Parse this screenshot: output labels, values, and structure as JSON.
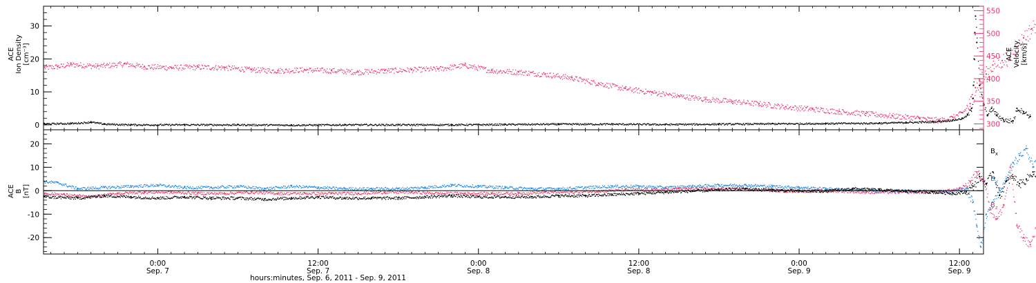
{
  "colors": {
    "black": "#000000",
    "pink": "#e8386a",
    "blue": "#1e88e5",
    "frame": "#000000"
  },
  "xaxis": {
    "ticks": [
      {
        "time": "0:00",
        "date": "Sep. 7"
      },
      {
        "time": "12:00",
        "date": "Sep. 7"
      },
      {
        "time": "0:00",
        "date": "Sep. 8"
      },
      {
        "time": "12:00",
        "date": "Sep. 8"
      },
      {
        "time": "0:00",
        "date": "Sep. 9"
      },
      {
        "time": "12:00",
        "date": "Sep. 9"
      }
    ],
    "title": "hours:minutes, Sep.  6, 2011 - Sep.  9, 2011"
  },
  "chart_data": [
    {
      "type": "scatter",
      "title": "",
      "xlabel": "hours:minutes, Sep.  6, 2011 - Sep.  9, 2011",
      "x_range_hours_since_sep6": [
        15.45,
        85.8
      ],
      "left_axis": {
        "label_lines": [
          "ACE",
          "Ion Density",
          "[cm⁻³]"
        ],
        "ylim": [
          -1.5,
          36
        ],
        "ticks": [
          0,
          10,
          20,
          30
        ]
      },
      "right_axis": {
        "label_lines": [
          "ACE",
          "Velocity",
          "[km/s]"
        ],
        "ylim": [
          287,
          560
        ],
        "ticks": [
          300,
          350,
          400,
          450,
          500,
          550
        ]
      },
      "series": [
        {
          "axis": "left",
          "color": "black",
          "points": [
            [
              15.5,
              0.4
            ],
            [
              17.5,
              0.5
            ],
            [
              19.0,
              0.9
            ],
            [
              20.0,
              0.3
            ],
            [
              22,
              0.1
            ],
            [
              26,
              0.1
            ],
            [
              30,
              0.1
            ],
            [
              34,
              0.0
            ],
            [
              38,
              0.1
            ],
            [
              42,
              0.1
            ],
            [
              46,
              0.1
            ],
            [
              50,
              0.2
            ],
            [
              54,
              0.3
            ],
            [
              58,
              0.3
            ],
            [
              62,
              0.2
            ],
            [
              66,
              0.3
            ],
            [
              70,
              0.4
            ],
            [
              74,
              0.5
            ],
            [
              78,
              0.6
            ],
            [
              80,
              0.8
            ],
            [
              82,
              1.0
            ],
            [
              83.5,
              1.5
            ],
            [
              84.2,
              2.0
            ],
            [
              84.6,
              3.0
            ],
            [
              84.9,
              5.0
            ],
            [
              85.0,
              8.0
            ],
            [
              85.05,
              12.0
            ],
            [
              85.1,
              20.0
            ],
            [
              85.15,
              28.0
            ],
            [
              85.2,
              33.0
            ],
            [
              85.3,
              25.0
            ],
            [
              85.5,
              12.0
            ],
            [
              85.8,
              6.0
            ],
            [
              86.1,
              3.0
            ],
            [
              86.4,
              5.0
            ],
            [
              86.8,
              3.0
            ],
            [
              87.3,
              1.5
            ],
            [
              88.0,
              1.2
            ],
            [
              88.3,
              5.0
            ],
            [
              88.8,
              4.0
            ],
            [
              89.3,
              2.5
            ]
          ]
        },
        {
          "axis": "right",
          "color": "pink",
          "points": [
            [
              15.5,
              425
            ],
            [
              16.5,
              427
            ],
            [
              17.5,
              432
            ],
            [
              19.5,
              428
            ],
            [
              21.5,
              433
            ],
            [
              23.0,
              427
            ],
            [
              25.0,
              425
            ],
            [
              27.0,
              426
            ],
            [
              29.0,
              425
            ],
            [
              31.0,
              420
            ],
            [
              33.0,
              418
            ],
            [
              35.0,
              420
            ],
            [
              37.0,
              418
            ],
            [
              39.0,
              415
            ],
            [
              41.0,
              418
            ],
            [
              43.0,
              420
            ],
            [
              45.0,
              422
            ],
            [
              47.0,
              430
            ],
            [
              49.0,
              418
            ],
            [
              51.0,
              415
            ],
            [
              53.0,
              410
            ],
            [
              55.0,
              402
            ],
            [
              57.0,
              390
            ],
            [
              59.0,
              378
            ],
            [
              61.0,
              370
            ],
            [
              63.0,
              362
            ],
            [
              65.0,
              355
            ],
            [
              67.0,
              350
            ],
            [
              69.0,
              345
            ],
            [
              71.0,
              338
            ],
            [
              73.0,
              333
            ],
            [
              75.0,
              328
            ],
            [
              77.0,
              323
            ],
            [
              79.0,
              318
            ],
            [
              81.0,
              313
            ],
            [
              82.5,
              308
            ],
            [
              83.5,
              315
            ],
            [
              84.2,
              325
            ],
            [
              84.8,
              345
            ],
            [
              85.2,
              380
            ],
            [
              85.5,
              395
            ],
            [
              86.0,
              410
            ],
            [
              86.5,
              430
            ],
            [
              87.2,
              440
            ],
            [
              87.8,
              450
            ],
            [
              88.3,
              470
            ],
            [
              88.8,
              490
            ],
            [
              89.4,
              510
            ],
            [
              89.9,
              530
            ],
            [
              90.4,
              520
            ],
            [
              90.9,
              480
            ],
            [
              91.2,
              460
            ]
          ]
        }
      ]
    },
    {
      "type": "scatter",
      "title": "",
      "xlabel": "hours:minutes, Sep.  6, 2011 - Sep.  9, 2011",
      "left_axis": {
        "label_lines": [
          "ACE",
          "B",
          "[nT]"
        ],
        "ylim": [
          -27,
          26
        ],
        "ticks": [
          -20,
          -10,
          0,
          10,
          20
        ]
      },
      "zero_line": true,
      "series": [
        {
          "name": "Bx",
          "name_main": "B",
          "name_sub": "x",
          "color": "black",
          "points": [
            [
              15.5,
              -2.5
            ],
            [
              18.0,
              -3.0
            ],
            [
              20.0,
              -2.0
            ],
            [
              22.0,
              -2.5
            ],
            [
              24.0,
              -3.0
            ],
            [
              26.0,
              -2.5
            ],
            [
              28.0,
              -3.0
            ],
            [
              30.0,
              -3.0
            ],
            [
              32.0,
              -3.5
            ],
            [
              34.0,
              -3.0
            ],
            [
              36.0,
              -2.5
            ],
            [
              38.0,
              -3.0
            ],
            [
              40.0,
              -3.0
            ],
            [
              42.0,
              -3.0
            ],
            [
              44.0,
              -2.5
            ],
            [
              46.0,
              -2.0
            ],
            [
              48.0,
              -2.5
            ],
            [
              50.0,
              -2.5
            ],
            [
              52.0,
              -2.5
            ],
            [
              54.0,
              -2.0
            ],
            [
              56.0,
              -2.0
            ],
            [
              58.0,
              -1.5
            ],
            [
              60.0,
              -1.0
            ],
            [
              62.0,
              -0.5
            ],
            [
              64.0,
              0.0
            ],
            [
              66.0,
              0.5
            ],
            [
              68.0,
              1.0
            ],
            [
              70.0,
              0.5
            ],
            [
              72.0,
              0.0
            ],
            [
              74.0,
              0.0
            ],
            [
              76.0,
              1.0
            ],
            [
              78.0,
              0.5
            ],
            [
              80.0,
              0.0
            ],
            [
              82.0,
              -0.5
            ],
            [
              83.5,
              -1.0
            ],
            [
              84.5,
              -0.5
            ],
            [
              85.0,
              2.0
            ],
            [
              85.5,
              6.0
            ],
            [
              86.0,
              3.0
            ],
            [
              86.5,
              8.0
            ],
            [
              87.0,
              -2.0
            ],
            [
              87.5,
              4.0
            ],
            [
              88.0,
              6.0
            ],
            [
              88.5,
              3.0
            ],
            [
              89.0,
              5.0
            ],
            [
              89.5,
              8.0
            ],
            [
              90.0,
              4.0
            ],
            [
              90.5,
              3.0
            ],
            [
              91.0,
              2.0
            ]
          ]
        },
        {
          "name": "By",
          "name_main": "B",
          "name_sub": "y",
          "color": "blue",
          "points": [
            [
              15.5,
              4.0
            ],
            [
              16.5,
              3.5
            ],
            [
              18.0,
              1.0
            ],
            [
              20.0,
              1.5
            ],
            [
              22.0,
              2.0
            ],
            [
              24.0,
              2.5
            ],
            [
              26.0,
              1.5
            ],
            [
              28.0,
              1.5
            ],
            [
              30.0,
              2.0
            ],
            [
              32.0,
              1.0
            ],
            [
              34.0,
              2.0
            ],
            [
              36.0,
              1.5
            ],
            [
              38.0,
              1.0
            ],
            [
              40.0,
              1.0
            ],
            [
              42.0,
              1.0
            ],
            [
              44.0,
              1.5
            ],
            [
              46.0,
              2.5
            ],
            [
              48.0,
              2.0
            ],
            [
              50.0,
              1.5
            ],
            [
              52.0,
              1.0
            ],
            [
              54.0,
              1.0
            ],
            [
              56.0,
              1.5
            ],
            [
              58.0,
              2.0
            ],
            [
              60.0,
              2.0
            ],
            [
              62.0,
              1.5
            ],
            [
              64.0,
              2.0
            ],
            [
              66.0,
              2.5
            ],
            [
              68.0,
              2.5
            ],
            [
              70.0,
              2.0
            ],
            [
              72.0,
              1.5
            ],
            [
              74.0,
              1.0
            ],
            [
              76.0,
              0.5
            ],
            [
              78.0,
              0.0
            ],
            [
              80.0,
              0.0
            ],
            [
              82.0,
              0.0
            ],
            [
              83.5,
              0.0
            ],
            [
              84.5,
              1.0
            ],
            [
              85.0,
              -5.0
            ],
            [
              85.3,
              -15.0
            ],
            [
              85.6,
              -24.0
            ],
            [
              86.0,
              -10.0
            ],
            [
              86.5,
              -5.0
            ],
            [
              87.0,
              0.0
            ],
            [
              87.5,
              5.0
            ],
            [
              88.0,
              12.0
            ],
            [
              88.5,
              15.0
            ],
            [
              89.0,
              18.0
            ],
            [
              89.5,
              10.0
            ],
            [
              90.0,
              15.0
            ],
            [
              90.5,
              20.0
            ],
            [
              91.0,
              18.0
            ]
          ]
        },
        {
          "name": "Bz",
          "name_main": "B",
          "name_sub": "z",
          "color": "pink",
          "points": [
            [
              15.5,
              -1.0
            ],
            [
              17.0,
              -1.5
            ],
            [
              19.0,
              -2.5
            ],
            [
              21.0,
              -1.0
            ],
            [
              23.0,
              -0.5
            ],
            [
              25.0,
              -0.5
            ],
            [
              27.0,
              -1.0
            ],
            [
              29.0,
              -1.0
            ],
            [
              31.0,
              -0.5
            ],
            [
              33.0,
              -1.0
            ],
            [
              35.0,
              -1.0
            ],
            [
              37.0,
              -1.0
            ],
            [
              39.0,
              -1.0
            ],
            [
              41.0,
              -0.5
            ],
            [
              43.0,
              -0.5
            ],
            [
              45.0,
              -1.0
            ],
            [
              47.0,
              -1.0
            ],
            [
              49.0,
              -1.0
            ],
            [
              51.0,
              -1.0
            ],
            [
              53.0,
              -0.5
            ],
            [
              55.0,
              -0.5
            ],
            [
              57.0,
              0.0
            ],
            [
              59.0,
              0.5
            ],
            [
              61.0,
              0.5
            ],
            [
              63.0,
              1.0
            ],
            [
              65.0,
              1.0
            ],
            [
              67.0,
              1.0
            ],
            [
              69.0,
              0.5
            ],
            [
              71.0,
              0.0
            ],
            [
              73.0,
              0.0
            ],
            [
              75.0,
              0.0
            ],
            [
              77.0,
              -0.5
            ],
            [
              79.0,
              -0.5
            ],
            [
              81.0,
              -0.5
            ],
            [
              83.0,
              0.0
            ],
            [
              84.0,
              1.0
            ],
            [
              84.8,
              4.0
            ],
            [
              85.3,
              8.0
            ],
            [
              85.8,
              5.0
            ],
            [
              86.3,
              -8.0
            ],
            [
              86.8,
              -12.0
            ],
            [
              87.3,
              -6.0
            ],
            [
              87.8,
              10.0
            ],
            [
              88.3,
              -15.0
            ],
            [
              88.8,
              -20.0
            ],
            [
              89.3,
              -23.0
            ],
            [
              89.8,
              -15.0
            ],
            [
              90.3,
              -12.0
            ],
            [
              90.8,
              -10.0
            ],
            [
              91.2,
              -11.0
            ]
          ]
        }
      ]
    }
  ]
}
